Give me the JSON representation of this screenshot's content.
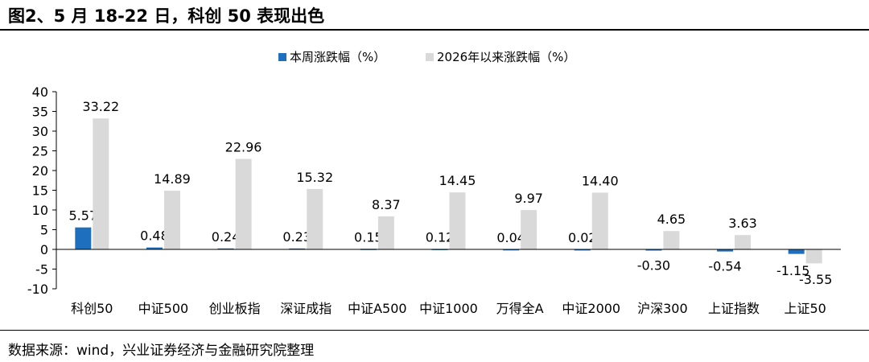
{
  "header": {
    "title": "图2、5 月 18-22 日，科创 50 表现出色"
  },
  "footer": {
    "source": "数据来源：wind，兴业证券经济与金融研究院整理"
  },
  "chart_data": {
    "type": "bar",
    "categories": [
      "科创50",
      "中证500",
      "创业板指",
      "深证成指",
      "中证A500",
      "中证1000",
      "万得全A",
      "中证2000",
      "沪深300",
      "上证指数",
      "上证50"
    ],
    "series": [
      {
        "name": "本周涨跌幅（%）",
        "color": "#1f6fbf",
        "values": [
          5.57,
          0.48,
          0.24,
          0.23,
          0.15,
          0.12,
          0.04,
          0.02,
          -0.3,
          -0.54,
          -1.15
        ]
      },
      {
        "name": "2026年以来涨跌幅（%）",
        "color": "#d9d9d9",
        "values": [
          33.22,
          14.89,
          22.96,
          15.32,
          8.37,
          14.45,
          9.97,
          14.4,
          4.65,
          3.63,
          -3.55
        ]
      }
    ],
    "value_labels": [
      [
        "5.57",
        "0.48",
        "0.24",
        "0.23",
        "0.15",
        "0.12",
        "0.04",
        "0.02",
        "-0.30",
        "-0.54",
        "-1.15"
      ],
      [
        "33.22",
        "14.89",
        "22.96",
        "15.32",
        "8.37",
        "14.45",
        "9.97",
        "14.40",
        "4.65",
        "3.63",
        "-3.55"
      ]
    ],
    "yticks": [
      "-10",
      "-5",
      "0",
      "5",
      "10",
      "15",
      "20",
      "25",
      "30",
      "35",
      "40"
    ],
    "ylim": [
      -10,
      40
    ],
    "legend_position": "top-center",
    "grid": false
  }
}
